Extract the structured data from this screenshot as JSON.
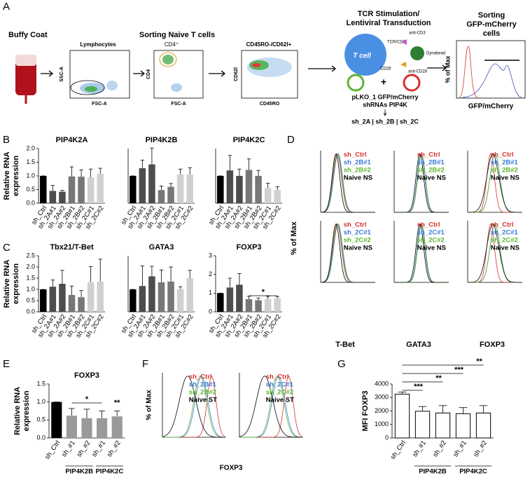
{
  "panel_labels": [
    "A",
    "B",
    "C",
    "D",
    "E",
    "F",
    "G"
  ],
  "diagram": {
    "buffy_coat": "Buffy Coat",
    "sorting_naive": "Sorting Naive T cells",
    "lymphocytes": "Lymphocytes",
    "ssc": "SSC-A",
    "fsc1": "FSC-A",
    "cd4_gate": "CD4⁺",
    "cd4": "CD4",
    "fsc2": "FSC-A",
    "gate3": "CD45RO-/CD62l+",
    "cd62l": "CD62l",
    "cd45ro": "CD45RO",
    "tcr_title": [
      "TCR Stimulation/",
      "Lentiviral Transduction"
    ],
    "t_cell": "T cell",
    "tcr_cd3": "TCR/CD3",
    "cd28": "CD28",
    "anti_cd3": "anti-CD3",
    "anti_cd28": "anti-CD28",
    "dynabead": "Dynabead",
    "plus": "+",
    "plko": "pLKO_1 GFP/mCherry",
    "shrnas": "shRNAs PIP4K",
    "sh_list": "sh_2A | sh_2B | sh_2C",
    "sorting_gfp": [
      "Sorting",
      "GFP-mCherry",
      "cells"
    ],
    "pct_max": "% of Max",
    "gfp_axis": "GFP/mCherry"
  },
  "histograms_D": {
    "y_label": "% of Max",
    "x_labels": [
      "T-Bet",
      "GATA3",
      "FOXP3"
    ],
    "legends": [
      [
        "sh_Ctrl",
        "sh_2B#1",
        "sh_2B#2",
        "Naive NS"
      ],
      [
        "sh_Ctrl",
        "sh_2C#1",
        "sh_2C#2",
        "Naive NS"
      ]
    ],
    "colors": [
      "#d8322c",
      "#3a7bd5",
      "#5cb531",
      "#000000"
    ]
  },
  "histograms_F": {
    "y_label": "% of Max",
    "x_label": "FOXP3",
    "legends": [
      [
        "sh_Ctrl",
        "sh_2B#1",
        "sh_2B#2",
        "Naive ST"
      ],
      [
        "sh_Ctrl",
        "sh_2C#1",
        "sh_2C#2",
        "Naive ST"
      ]
    ],
    "colors": [
      "#d8322c",
      "#3a7bd5",
      "#5cb531",
      "#000000"
    ]
  },
  "chart_data": [
    {
      "type": "bar",
      "title": "PIP4K2A",
      "ylabel": [
        "Relative RNA",
        "expression"
      ],
      "categories": [
        "sh_Ctrl",
        "sh_2A#1",
        "sh_2A#2",
        "sh_2B#1",
        "sh_2B#2",
        "sh_2C#1",
        "sh_2C#2"
      ],
      "values": [
        1.0,
        0.45,
        0.42,
        0.98,
        0.97,
        0.95,
        1.08
      ],
      "errors": [
        0,
        0.2,
        0.05,
        0.35,
        0.25,
        0.3,
        0.2
      ],
      "colors": [
        "#000000",
        "#4d4d4d",
        "#4d4d4d",
        "#777777",
        "#777777",
        "#d0d0d0",
        "#d0d0d0"
      ],
      "ylim": [
        0,
        2
      ],
      "yticks": [
        {
          "value": 0,
          "label": "0.0"
        },
        0.5,
        {
          "value": 1,
          "label": "1.0"
        },
        1.5,
        {
          "value": 2,
          "label": "2.0"
        }
      ]
    },
    {
      "type": "bar",
      "title": "PIP4K2B",
      "categories": [
        "sh_Ctrl",
        "sh_2A#1",
        "sh_2A#2",
        "sh_2B#1",
        "sh_2B#2",
        "sh_2C#1",
        "sh_2C#2"
      ],
      "values": [
        1.0,
        1.28,
        1.42,
        0.48,
        0.6,
        1.05,
        1.05
      ],
      "errors": [
        0,
        0.3,
        0.6,
        0.15,
        0.12,
        0.2,
        0.25
      ],
      "colors": [
        "#000000",
        "#4d4d4d",
        "#4d4d4d",
        "#777777",
        "#777777",
        "#d0d0d0",
        "#d0d0d0"
      ],
      "ylim": [
        0,
        2
      ]
    },
    {
      "type": "bar",
      "title": "PIP4K2C",
      "categories": [
        "sh_Ctrl",
        "sh_2A#1",
        "sh_2A#2",
        "sh_2B#1",
        "sh_2B#2",
        "sh_2C#1",
        "sh_2C#2"
      ],
      "values": [
        1.0,
        1.2,
        1.0,
        1.22,
        1.0,
        0.55,
        0.48
      ],
      "errors": [
        0,
        0.55,
        0.25,
        0.4,
        0.2,
        0.18,
        0.12
      ],
      "colors": [
        "#000000",
        "#4d4d4d",
        "#4d4d4d",
        "#777777",
        "#777777",
        "#d0d0d0",
        "#d0d0d0"
      ],
      "ylim": [
        0,
        2
      ]
    },
    {
      "type": "bar",
      "title": "Tbx21/T-Bet",
      "ylabel": [
        "Relative RNA",
        "expression"
      ],
      "categories": [
        "sh_Ctrl",
        "sh_2A#1",
        "sh_2A#2",
        "sh_2B#1",
        "sh_2B#2",
        "sh_2C#1",
        "sh_2C#2"
      ],
      "values": [
        1.0,
        1.12,
        1.25,
        0.75,
        0.65,
        1.32,
        1.35
      ],
      "errors": [
        0,
        0.3,
        0.6,
        0.4,
        0.3,
        0.7,
        1.0
      ],
      "colors": [
        "#000000",
        "#4d4d4d",
        "#4d4d4d",
        "#777777",
        "#777777",
        "#d0d0d0",
        "#d0d0d0"
      ],
      "ylim": [
        0,
        2.5
      ],
      "yticks": [
        {
          "value": 0,
          "label": "0.0"
        },
        0.5,
        {
          "value": 1,
          "label": "1.0"
        },
        1.5,
        {
          "value": 2,
          "label": "2.0"
        },
        2.5
      ]
    },
    {
      "type": "bar",
      "title": "GATA3",
      "categories": [
        "sh_Ctrl",
        "sh_2A#1",
        "sh_2A#2",
        "sh_2B#1",
        "sh_2B#2",
        "sh_2C#1",
        "sh_2C#2"
      ],
      "values": [
        1.0,
        1.15,
        1.58,
        1.32,
        1.35,
        1.02,
        1.5
      ],
      "errors": [
        0,
        0.9,
        0.45,
        0.55,
        0.65,
        0.1,
        0.35
      ],
      "colors": [
        "#000000",
        "#4d4d4d",
        "#4d4d4d",
        "#777777",
        "#777777",
        "#d0d0d0",
        "#d0d0d0"
      ],
      "ylim": [
        0,
        2.5
      ]
    },
    {
      "type": "bar",
      "title": "FOXP3",
      "categories": [
        "sh_Ctrl",
        "sh_2A#1",
        "sh_2A#2",
        "sh_2B#1",
        "sh_2B#2",
        "sh_2C#1",
        "sh_2C#2"
      ],
      "values": [
        1.0,
        1.3,
        1.45,
        0.68,
        0.62,
        0.68,
        0.72
      ],
      "errors": [
        0,
        0.5,
        0.6,
        0.15,
        0.12,
        0.15,
        0.1
      ],
      "colors": [
        "#000000",
        "#4d4d4d",
        "#4d4d4d",
        "#777777",
        "#777777",
        "#d0d0d0",
        "#d0d0d0"
      ],
      "ylim": [
        0,
        3
      ],
      "yticks": [
        0,
        1,
        2,
        3
      ],
      "annotations": [
        "*"
      ]
    },
    {
      "type": "bar",
      "title": "FOXP3",
      "ylabel": [
        "Relative RNA",
        "expression"
      ],
      "categories": [
        "sh_Ctrl",
        "sh_#1",
        "sh_#2",
        "sh_#1",
        "sh_#2"
      ],
      "groups": [
        "PIP4K2B",
        "PIP4K2C"
      ],
      "values": [
        1.0,
        0.62,
        0.55,
        0.55,
        0.6
      ],
      "errors": [
        0,
        0.2,
        0.25,
        0.2,
        0.15
      ],
      "colors": [
        "#000000",
        "#9a9a9a",
        "#9a9a9a",
        "#9a9a9a",
        "#9a9a9a"
      ],
      "ylim": [
        0,
        1.5
      ],
      "yticks": [
        {
          "value": 0,
          "label": "0.0"
        },
        0.5,
        {
          "value": 1,
          "label": "1.0"
        },
        1.5
      ],
      "annotations": [
        "*",
        "**"
      ]
    },
    {
      "type": "bar",
      "ylabel": [
        "MFI FOXP3"
      ],
      "categories": [
        "sh_Ctrl",
        "sh_#1",
        "sh_#2",
        "sh_#1",
        "sh_#2"
      ],
      "groups": [
        "PIP4K2B",
        "PIP4K2C"
      ],
      "values": [
        3250,
        1980,
        1850,
        1800,
        1850
      ],
      "errors": [
        150,
        350,
        550,
        450,
        550
      ],
      "colors": [
        "#ffffff",
        "#ffffff",
        "#ffffff",
        "#ffffff",
        "#ffffff"
      ],
      "edgecolor": "#000000",
      "ylim": [
        0,
        4000
      ],
      "yticks": [
        0,
        1000,
        2000,
        3000,
        4000
      ],
      "annotations": [
        "***",
        "**",
        "***",
        "**"
      ]
    }
  ]
}
